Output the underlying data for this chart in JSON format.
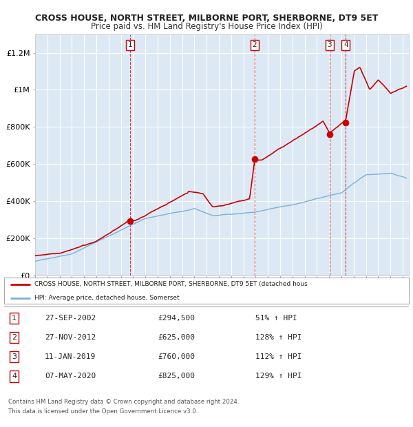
{
  "title": "CROSS HOUSE, NORTH STREET, MILBORNE PORT, SHERBORNE, DT9 5ET",
  "subtitle": "Price paid vs. HM Land Registry's House Price Index (HPI)",
  "legend_line1": "CROSS HOUSE, NORTH STREET, MILBORNE PORT, SHERBORNE, DT9 5ET (detached hous",
  "legend_line2": "HPI: Average price, detached house, Somerset",
  "footer1": "Contains HM Land Registry data © Crown copyright and database right 2024.",
  "footer2": "This data is licensed under the Open Government Licence v3.0.",
  "transactions": [
    {
      "num": 1,
      "date": "27-SEP-2002",
      "year": 2002.74,
      "price": 294500,
      "pct": "51% ↑ HPI"
    },
    {
      "num": 2,
      "date": "27-NOV-2012",
      "year": 2012.9,
      "price": 625000,
      "pct": "128% ↑ HPI"
    },
    {
      "num": 3,
      "date": "11-JAN-2019",
      "year": 2019.03,
      "price": 760000,
      "pct": "112% ↑ HPI"
    },
    {
      "num": 4,
      "date": "07-MAY-2020",
      "year": 2020.35,
      "price": 825000,
      "pct": "129% ↑ HPI"
    }
  ],
  "hpi_color": "#7bafd4",
  "price_color": "#cc0000",
  "background_color": "#dce9f5",
  "grid_color": "#ffffff",
  "outer_bg": "#ffffff",
  "xmin": 1995,
  "xmax": 2025.5,
  "ymin": 0,
  "ymax": 1300000,
  "yticks": [
    0,
    200000,
    400000,
    600000,
    800000,
    1000000,
    1200000
  ],
  "ylabels": [
    "£0",
    "£200K",
    "£400K",
    "£600K",
    "£800K",
    "£1M",
    "£1.2M"
  ]
}
